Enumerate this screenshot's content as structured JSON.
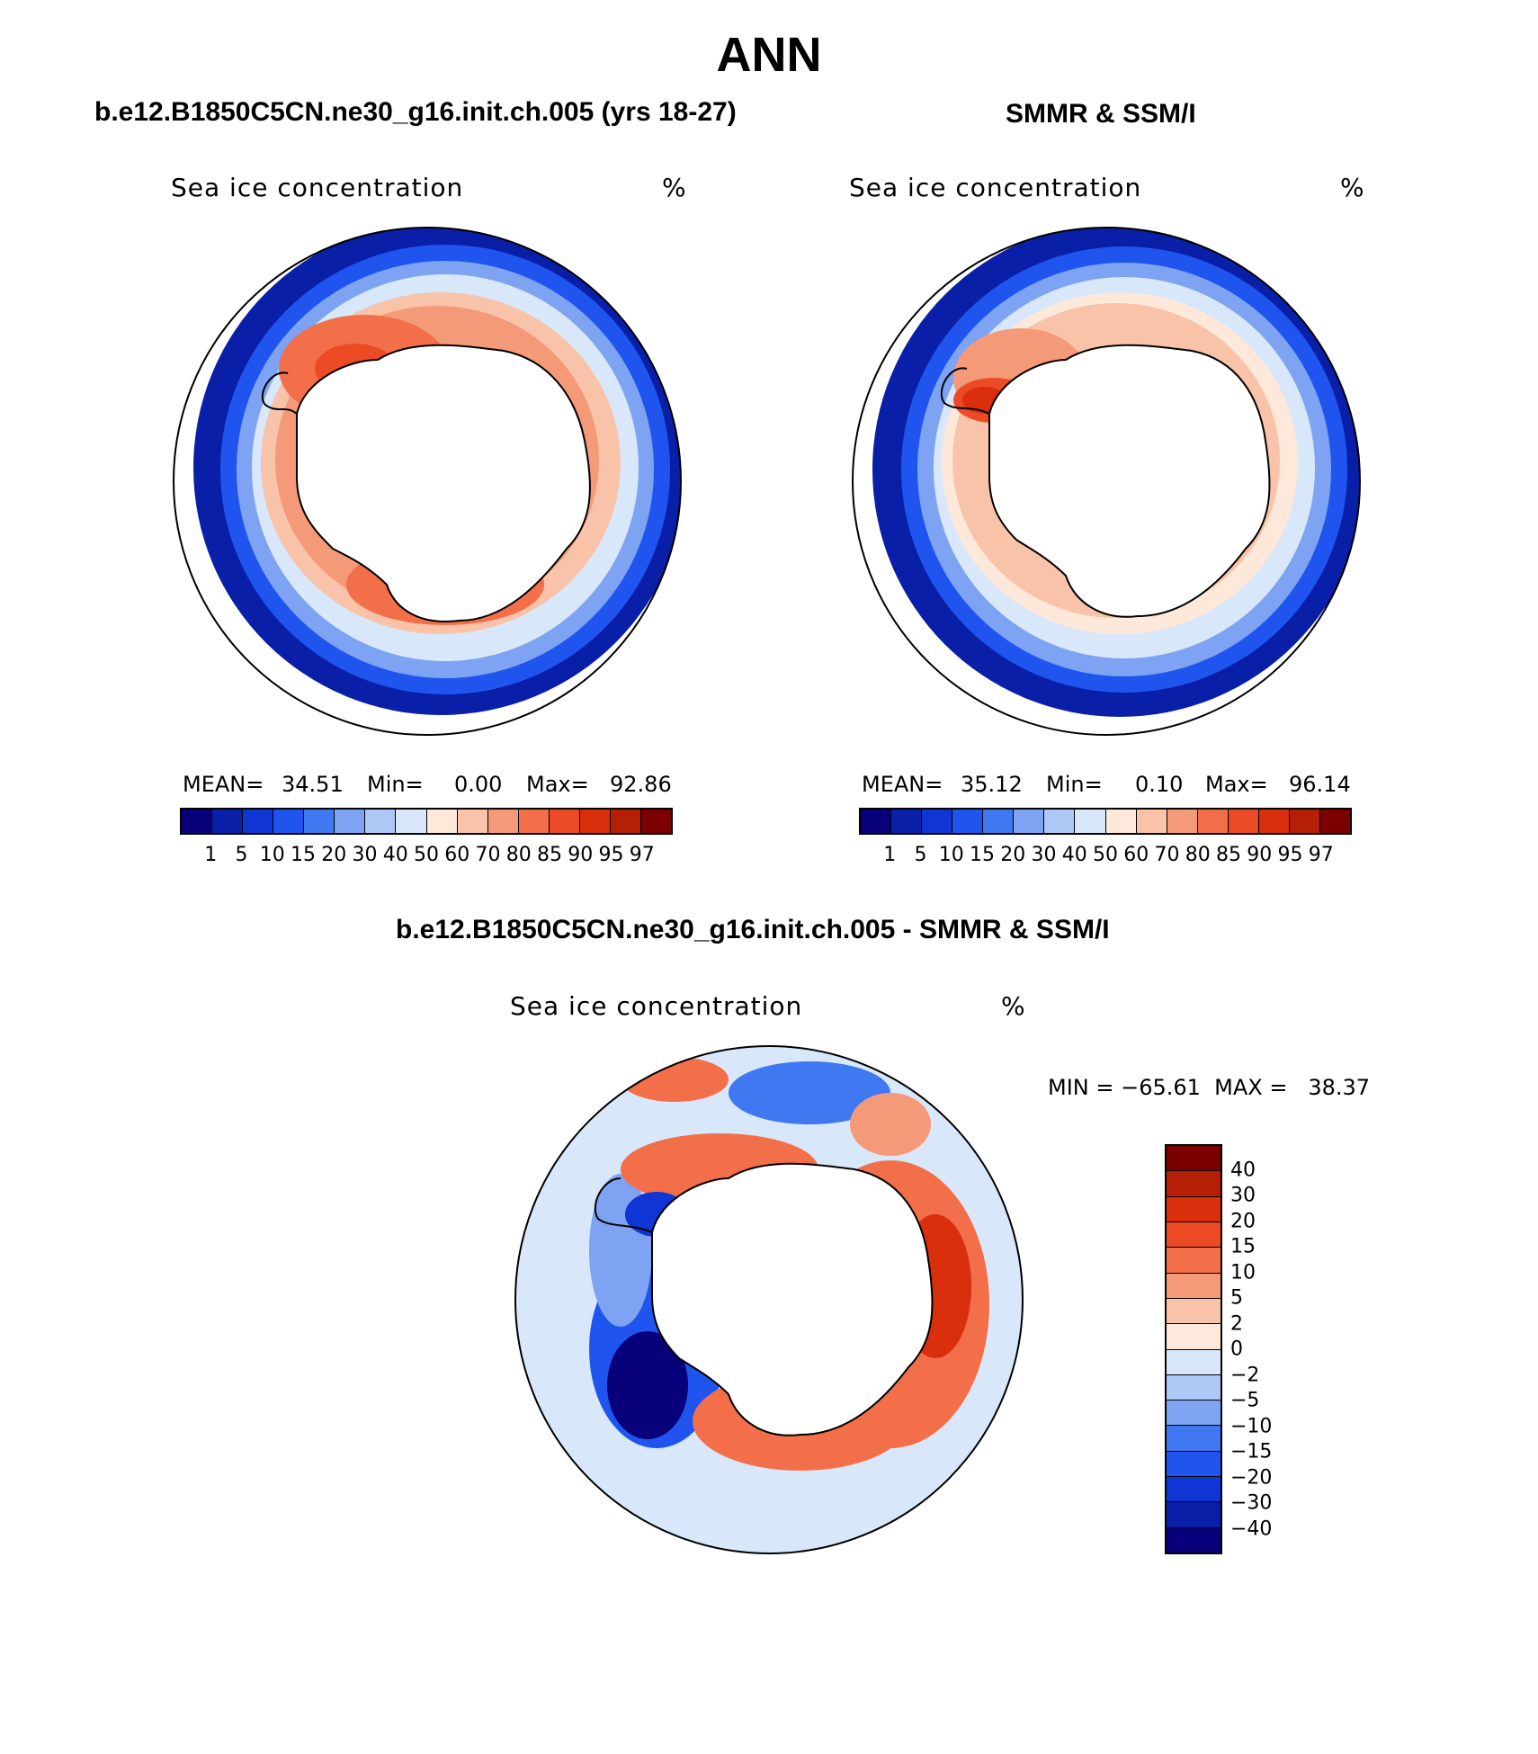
{
  "figure_title": "ANN",
  "panels": [
    {
      "title": "b.e12.B1850C5CN.ne30_g16.init.ch.005 (yrs 18-27)",
      "variable": "Sea ice concentration",
      "units": "%",
      "stats": {
        "mean_label": "MEAN=",
        "mean": "34.51",
        "min_label": "Min=",
        "min": "0.00",
        "max_label": "Max=",
        "max": "92.86"
      }
    },
    {
      "title": "SMMR & SSM/I",
      "variable": "Sea ice concentration",
      "units": "%",
      "stats": {
        "mean_label": "MEAN=",
        "mean": "35.12",
        "min_label": "Min=",
        "min": "0.10",
        "max_label": "Max=",
        "max": "96.14"
      }
    },
    {
      "title": "b.e12.B1850C5CN.ne30_g16.init.ch.005 - SMMR & SSM/I",
      "variable": "Sea ice concentration",
      "units": "%",
      "stats": {
        "text": "MIN = −65.61  MAX =   38.37"
      }
    }
  ],
  "colorbar_conc": {
    "levels": [
      "1",
      "5",
      "10",
      "15",
      "20",
      "30",
      "40",
      "50",
      "60",
      "70",
      "80",
      "85",
      "90",
      "95",
      "97"
    ],
    "colors": [
      "#08007a",
      "#0a1fa8",
      "#0f36d4",
      "#1f55ee",
      "#3f78f0",
      "#7ea3f2",
      "#aec8f5",
      "#d8e8fa",
      "#fde8da",
      "#f8c3a8",
      "#f59a78",
      "#f26f4a",
      "#ec4a25",
      "#d92f0c",
      "#b41f06",
      "#7d0000"
    ]
  },
  "colorbar_diff": {
    "levels": [
      "40",
      "30",
      "20",
      "15",
      "10",
      "5",
      "2",
      "0",
      "−2",
      "−5",
      "−10",
      "−15",
      "−20",
      "−30",
      "−40"
    ],
    "colors": [
      "#7d0000",
      "#b41f06",
      "#d92f0c",
      "#ec4a25",
      "#f26f4a",
      "#f59a78",
      "#f8c3a8",
      "#fde8da",
      "#d8e8fa",
      "#aec8f5",
      "#7ea3f2",
      "#3f78f0",
      "#1f55ee",
      "#0f36d4",
      "#0a1fa8",
      "#08007a"
    ]
  }
}
